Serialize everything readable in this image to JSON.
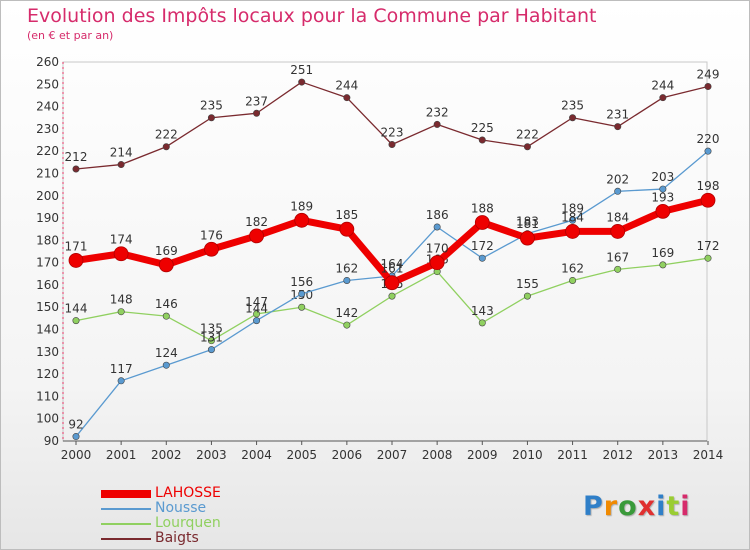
{
  "title": "Evolution des Impôts locaux pour la Commune par Habitant",
  "subtitle": "(en € et par an)",
  "logo": {
    "text": "Proxiti",
    "letter_colors": [
      "#2f7fc8",
      "#f08a00",
      "#3a9a3a",
      "#e03030",
      "#2f7fc8",
      "#9acd32",
      "#d62b6b"
    ]
  },
  "chart_data": {
    "type": "line",
    "x": [
      "2000",
      "2001",
      "2002",
      "2003",
      "2004",
      "2005",
      "2006",
      "2007",
      "2008",
      "2009",
      "2010",
      "2011",
      "2012",
      "2013",
      "2014"
    ],
    "ylim": [
      90,
      260
    ],
    "yticks": [
      90,
      100,
      110,
      120,
      130,
      140,
      150,
      160,
      170,
      180,
      190,
      200,
      210,
      220,
      230,
      240,
      250,
      260
    ],
    "grid": false,
    "legend": "bottom-left",
    "series": [
      {
        "name": "Baigts",
        "color": "#7a2a2f",
        "values": [
          212,
          214,
          222,
          235,
          237,
          251,
          244,
          223,
          232,
          225,
          222,
          235,
          231,
          244,
          249
        ]
      },
      {
        "name": "Lourquen",
        "color": "#90d060",
        "values": [
          144,
          148,
          146,
          135,
          147,
          150,
          142,
          155,
          166,
          143,
          155,
          162,
          167,
          169,
          172
        ]
      },
      {
        "name": "Nousse",
        "color": "#5a9ad0",
        "values": [
          92,
          117,
          124,
          131,
          144,
          156,
          162,
          164,
          186,
          172,
          183,
          189,
          202,
          203,
          220
        ]
      },
      {
        "name": "LAHOSSE",
        "color": "#ee0000",
        "values": [
          171,
          174,
          169,
          176,
          182,
          189,
          185,
          161,
          170,
          188,
          181,
          184,
          184,
          193,
          198
        ]
      }
    ]
  }
}
